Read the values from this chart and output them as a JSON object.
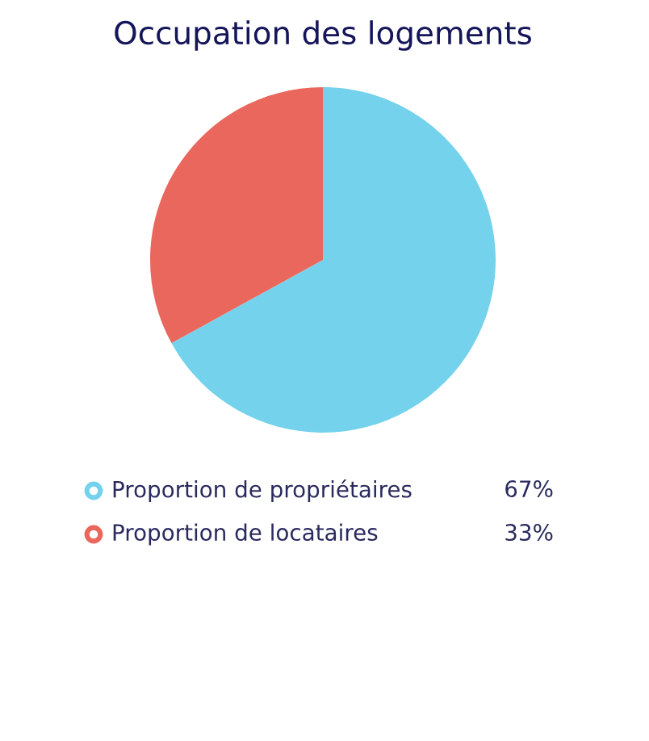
{
  "chart_data": {
    "type": "pie",
    "title": "Occupation des logements",
    "categories": [
      "Proportion de propriétaires",
      "Proportion de locataires"
    ],
    "values": [
      67,
      33
    ],
    "colors": [
      "#74d2ec",
      "#e9675c"
    ],
    "value_labels": [
      "67%",
      "33%"
    ],
    "legend": "bottom"
  }
}
